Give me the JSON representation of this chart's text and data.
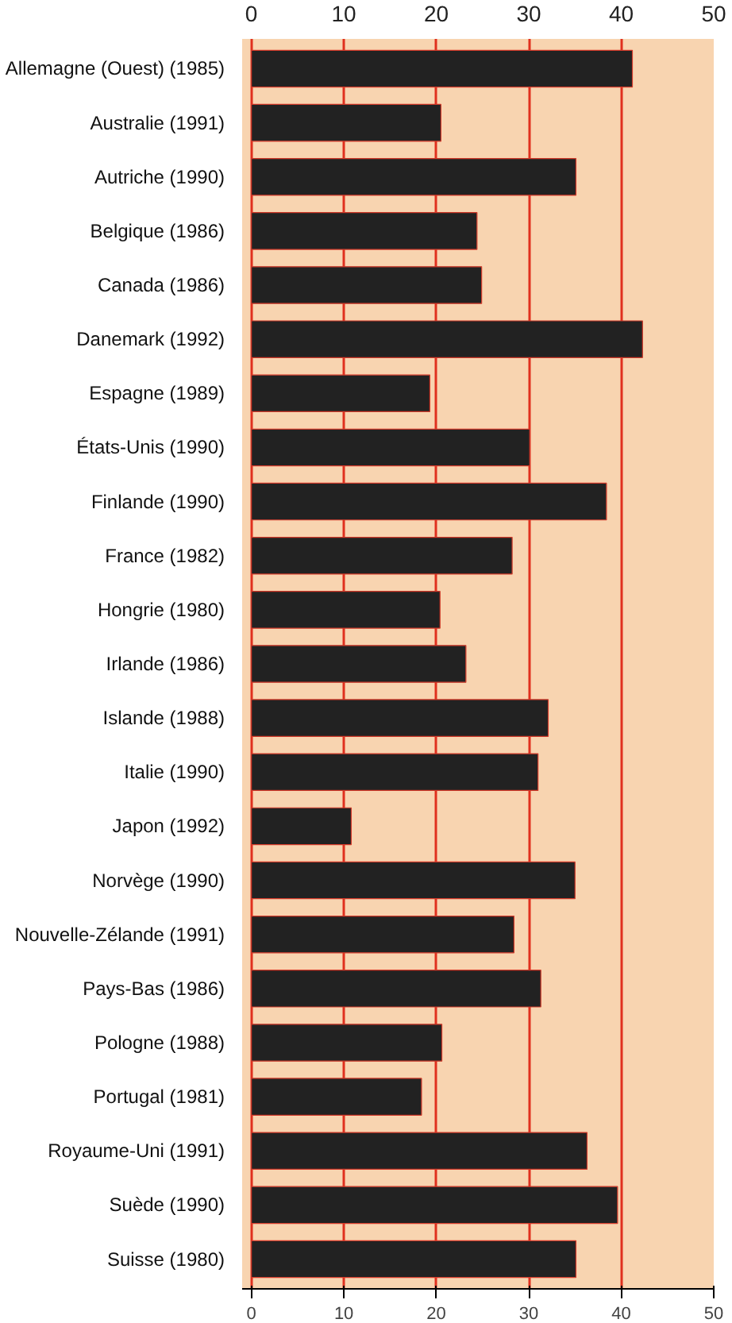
{
  "chart_data": {
    "type": "bar",
    "orientation": "horizontal",
    "categories": [
      "Allemagne (Ouest) (1985)",
      "Australie (1991)",
      "Autriche (1990)",
      "Belgique (1986)",
      "Canada (1986)",
      "Danemark (1992)",
      "Espagne (1989)",
      "États-Unis (1990)",
      "Finlande (1990)",
      "France (1982)",
      "Hongrie (1980)",
      "Irlande (1986)",
      "Islande (1988)",
      "Italie (1990)",
      "Japon (1992)",
      "Norvège (1990)",
      "Nouvelle-Zélande (1991)",
      "Pays-Bas (1986)",
      "Pologne (1988)",
      "Portugal (1981)",
      "Royaume-Uni (1991)",
      "Suède (1990)",
      "Suisse (1980)"
    ],
    "values": [
      41.2,
      20.5,
      35.1,
      24.4,
      24.9,
      42.3,
      19.3,
      30.1,
      38.4,
      28.2,
      20.4,
      23.2,
      32.1,
      31.0,
      10.8,
      35.0,
      28.4,
      31.3,
      20.6,
      18.4,
      36.3,
      39.6,
      35.1
    ],
    "color": "#222222",
    "xlim": [
      -1,
      50
    ],
    "xticks": [
      0,
      10,
      20,
      30,
      40,
      50
    ],
    "x2lim": [
      -1,
      50
    ],
    "x2ticks": [
      0,
      10,
      20,
      30,
      40,
      50
    ],
    "grid": "x"
  }
}
